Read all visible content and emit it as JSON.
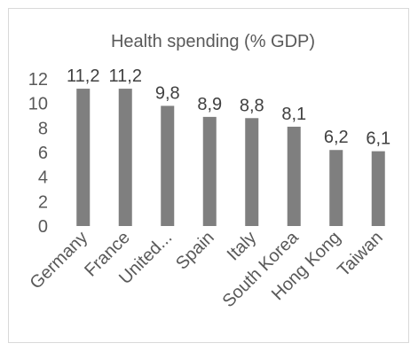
{
  "chart_data": {
    "type": "bar",
    "title": "Health spending (% GDP)",
    "categories": [
      "Germany",
      "France",
      "United...",
      "Spain",
      "Italy",
      "South Korea",
      "Hong Kong",
      "Taiwan"
    ],
    "values": [
      11.2,
      11.2,
      9.8,
      8.9,
      8.8,
      8.1,
      6.2,
      6.1
    ],
    "data_labels": [
      "11,2",
      "11,2",
      "9,8",
      "8,9",
      "8,8",
      "8,1",
      "6,2",
      "6,1"
    ],
    "yticks": [
      "0",
      "2",
      "4",
      "6",
      "8",
      "10",
      "12"
    ],
    "ylim": [
      0,
      12
    ],
    "xlabel": "",
    "ylabel": "",
    "grid": false,
    "legend": "none",
    "bar_color": "#7f7f7f"
  }
}
